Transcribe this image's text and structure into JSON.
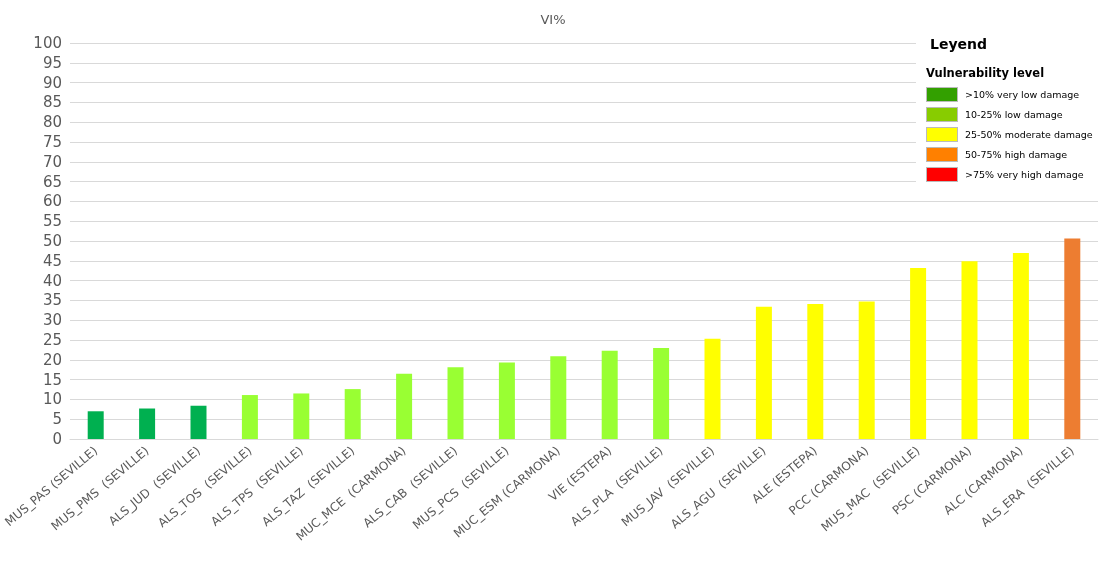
{
  "chart_data": [
    {
      "type": "bar",
      "title": "VI%",
      "categories": [
        "MUS_PAS (SEVILLE)",
        "MUS_PMS  (SEVILLE)",
        "ALS_JUD  (SEVILLE)",
        "ALS_TOS  (SEVILLE)",
        "ALS_TPS  (SEVILLE)",
        "ALS_TAZ  (SEVILLE)",
        "MUC_MCE  (CARMONA)",
        "ALS_CAB  (SEVILLE)",
        "MUS_PCS  (SEVILLE)",
        "MUC_ESM (CARMONA)",
        "VIE (ESTEPA)",
        "ALS_PLA  (SEVILLE)",
        "MUS_JAV  (SEVILLE)",
        "ALS_AGU  (SEVILLE)",
        "ALE (ESTEPA)",
        "PCC (CARMONA)",
        "MUS_MAC  (SEVILLE)",
        "PSC (CARMONA)",
        "ALC (CARMONA)",
        "ALS_ERA  (SEVILLE)"
      ],
      "values": [
        7.0,
        7.7,
        8.4,
        11.1,
        11.5,
        12.6,
        16.5,
        18.1,
        19.3,
        20.9,
        22.3,
        23.0,
        25.3,
        33.4,
        34.1,
        34.7,
        43.2,
        44.9,
        47.0,
        50.6
      ],
      "colors": [
        "#00b050",
        "#00b050",
        "#00b050",
        "#99ff33",
        "#99ff33",
        "#99ff33",
        "#99ff33",
        "#99ff33",
        "#99ff33",
        "#99ff33",
        "#99ff33",
        "#99ff33",
        "#ffff00",
        "#ffff00",
        "#ffff00",
        "#ffff00",
        "#ffff00",
        "#ffff00",
        "#ffff00",
        "#ed7d31"
      ],
      "ylim": [
        0,
        100
      ],
      "yticks": [
        0,
        5,
        10,
        15,
        20,
        25,
        30,
        35,
        40,
        45,
        50,
        55,
        60,
        65,
        70,
        75,
        80,
        85,
        90,
        95,
        100
      ],
      "grid": "y"
    },
    {
      "type": "other",
      "title": "Leyend",
      "subtitle": "Vulnerability level",
      "categories": [
        ">10% very low damage",
        "10-25% low damage",
        "25-50% moderate damage",
        "50-75% high damage",
        ">75% very high damage"
      ],
      "colors": [
        "#33a000",
        "#88cc00",
        "#ffff00",
        "#ff8000",
        "#ff0000"
      ]
    }
  ]
}
